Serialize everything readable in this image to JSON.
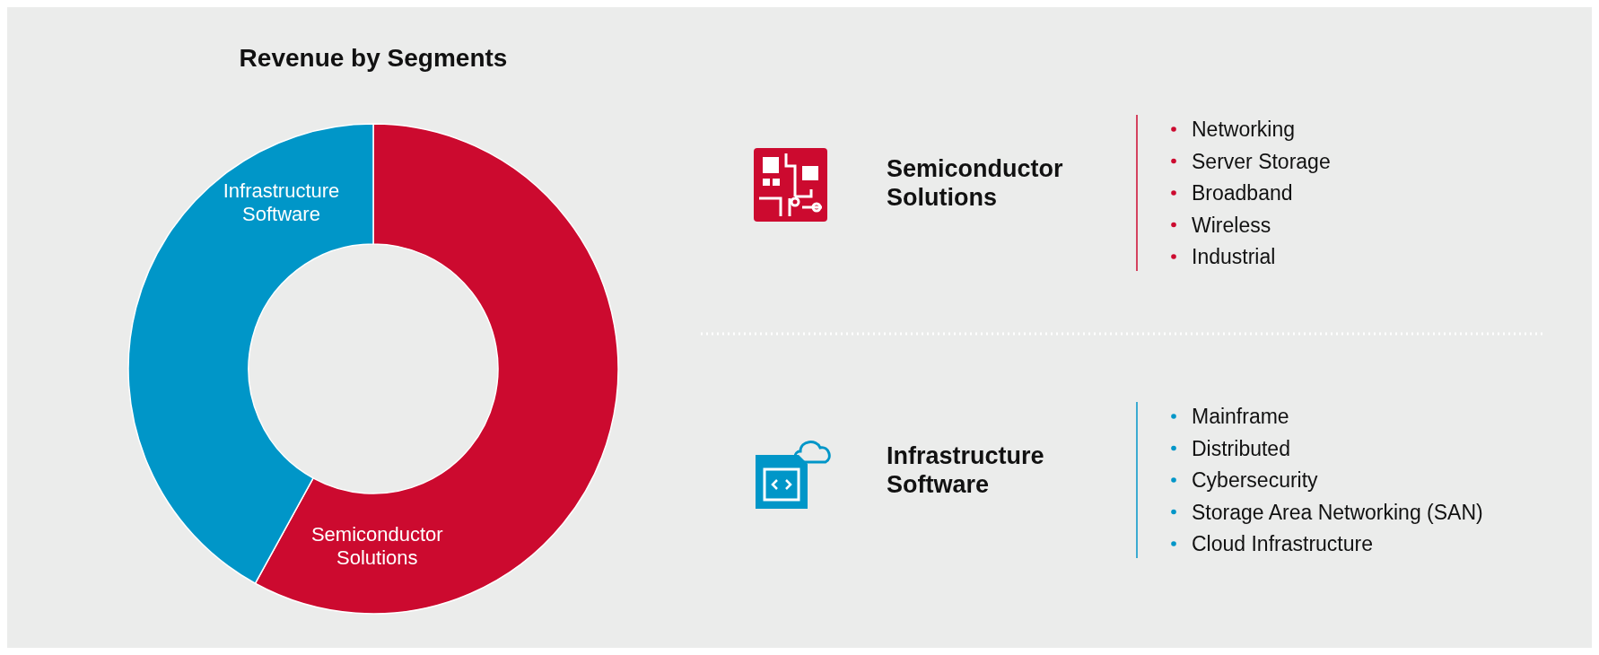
{
  "chart_data": [
    {
      "type": "donut",
      "title": "Revenue by Segments",
      "categories": [
        "Semiconductor Solutions",
        "Infrastructure Software"
      ],
      "values": [
        58,
        42
      ],
      "colors": [
        "#cc0a2f",
        "#0096c8"
      ]
    },
    {
      "type": "other",
      "title": "Semiconductor Solutions",
      "color": "#cc0a2f",
      "annotations": [
        "Networking",
        "Server Storage",
        "Broadband",
        "Wireless",
        "Industrial"
      ]
    },
    {
      "type": "other",
      "title": "Infrastructure Software",
      "color": "#0096c8",
      "annotations": [
        "Mainframe",
        "Distributed",
        "Cybersecurity",
        "Storage Area Networking (SAN)",
        "Cloud Infrastructure"
      ]
    }
  ]
}
